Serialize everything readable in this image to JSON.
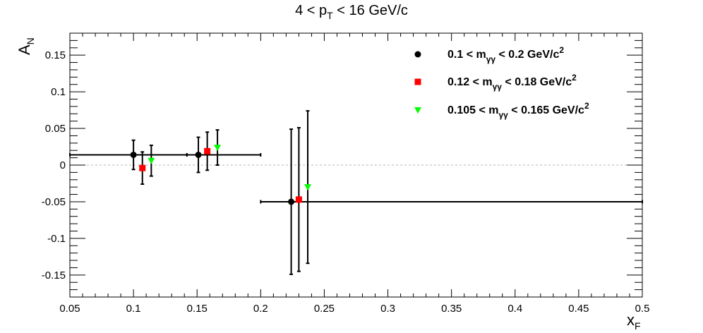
{
  "chart_data": {
    "type": "scatter",
    "title": {
      "pre": "4 < p",
      "sub": "T",
      "post": " < 16 GeV/c"
    },
    "xlabel": {
      "main": "x",
      "sub": "F"
    },
    "ylabel": {
      "main": "A",
      "sub": "N"
    },
    "xlim": [
      0.05,
      0.5
    ],
    "ylim": [
      -0.18,
      0.18
    ],
    "xticks": [
      {
        "value": 0.05,
        "label": "0.05"
      },
      {
        "value": 0.1,
        "label": "0.1"
      },
      {
        "value": 0.15,
        "label": "0.15"
      },
      {
        "value": 0.2,
        "label": "0.2"
      },
      {
        "value": 0.25,
        "label": "0.25"
      },
      {
        "value": 0.3,
        "label": "0.3"
      },
      {
        "value": 0.35,
        "label": "0.35"
      },
      {
        "value": 0.4,
        "label": "0.4"
      },
      {
        "value": 0.45,
        "label": "0.45"
      },
      {
        "value": 0.5,
        "label": "0.5"
      }
    ],
    "yticks": [
      {
        "value": 0.15,
        "label": "0.15"
      },
      {
        "value": 0.1,
        "label": "0.1"
      },
      {
        "value": 0.05,
        "label": "0.05"
      },
      {
        "value": 0,
        "label": "0"
      },
      {
        "value": -0.05,
        "label": "-0.05"
      },
      {
        "value": -0.1,
        "label": "-0.1"
      },
      {
        "value": -0.15,
        "label": "-0.15"
      }
    ],
    "reference_line_y": 0,
    "legend_position": "top-right",
    "series": [
      {
        "name": {
          "pre": "0.1 < m",
          "sub": "γγ",
          "post": " < 0.2 GeV/c",
          "sup": "2"
        },
        "marker": "circle",
        "color": "#000000",
        "points": [
          {
            "x": 0.1,
            "y": 0.014,
            "xlo": 0.05,
            "xhi": 0.142,
            "yerr": 0.02
          },
          {
            "x": 0.151,
            "y": 0.014,
            "xlo": 0.142,
            "xhi": 0.2,
            "yerr": 0.024
          },
          {
            "x": 0.224,
            "y": -0.05,
            "xlo": 0.2,
            "xhi": 0.5,
            "yerr": 0.099
          }
        ]
      },
      {
        "name": {
          "pre": "0.12 < m",
          "sub": "γγ",
          "post": " < 0.18 GeV/c",
          "sup": "2"
        },
        "marker": "square",
        "color": "#ff0000",
        "points": [
          {
            "x": 0.107,
            "y": -0.004,
            "yerr": 0.022
          },
          {
            "x": 0.158,
            "y": 0.019,
            "yerr": 0.026
          },
          {
            "x": 0.23,
            "y": -0.047,
            "yerr": 0.098
          }
        ]
      },
      {
        "name": {
          "pre": "0.105 < m",
          "sub": "γγ",
          "post": " < 0.165 GeV/c",
          "sup": "2"
        },
        "marker": "triangle-down",
        "color": "#00ff00",
        "points": [
          {
            "x": 0.114,
            "y": 0.006,
            "yerr": 0.021
          },
          {
            "x": 0.166,
            "y": 0.024,
            "yerr": 0.024
          },
          {
            "x": 0.237,
            "y": -0.03,
            "yerr": 0.104
          }
        ]
      }
    ]
  }
}
